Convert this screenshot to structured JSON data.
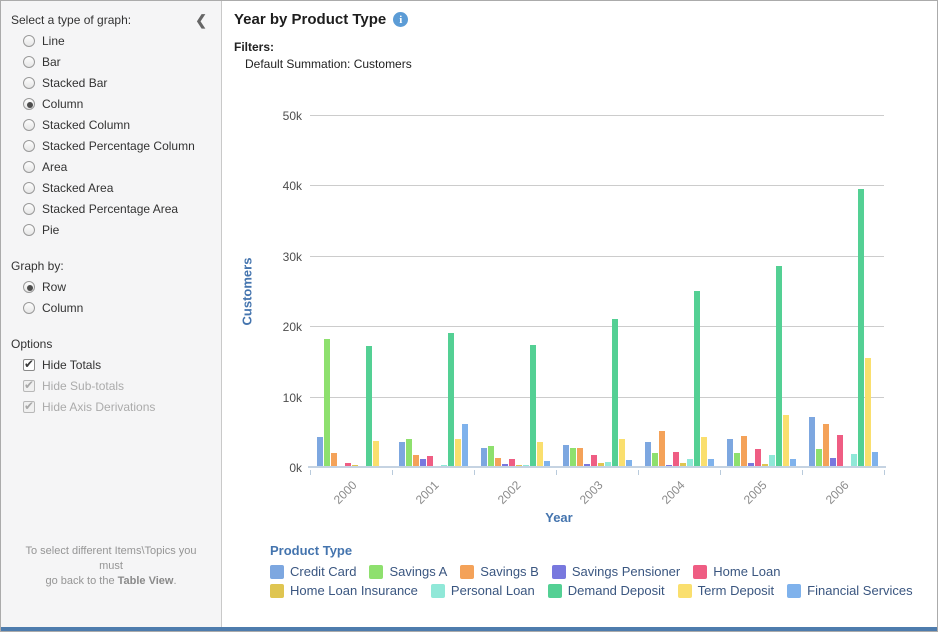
{
  "sidebar": {
    "graph_type_label": "Select a type of graph:",
    "graph_types": [
      {
        "label": "Line",
        "selected": false
      },
      {
        "label": "Bar",
        "selected": false
      },
      {
        "label": "Stacked Bar",
        "selected": false
      },
      {
        "label": "Column",
        "selected": true
      },
      {
        "label": "Stacked Column",
        "selected": false
      },
      {
        "label": "Stacked Percentage Column",
        "selected": false
      },
      {
        "label": "Area",
        "selected": false
      },
      {
        "label": "Stacked Area",
        "selected": false
      },
      {
        "label": "Stacked Percentage Area",
        "selected": false
      },
      {
        "label": "Pie",
        "selected": false
      }
    ],
    "graph_by_label": "Graph by:",
    "graph_by_options": [
      {
        "label": "Row",
        "selected": true
      },
      {
        "label": "Column",
        "selected": false
      }
    ],
    "options_label": "Options",
    "options": [
      {
        "label": "Hide Totals",
        "checked": true,
        "disabled": false
      },
      {
        "label": "Hide Sub-totals",
        "checked": true,
        "disabled": true
      },
      {
        "label": "Hide Axis Derivations",
        "checked": true,
        "disabled": true
      }
    ],
    "footer_note_line1": "To select different Items\\Topics you must",
    "footer_note_pre": "go back to the ",
    "footer_note_bold": "Table View",
    "footer_note_end": "."
  },
  "header": {
    "title": "Year by Product Type",
    "filters_label": "Filters:",
    "filter_value": "Default Summation: Customers"
  },
  "icons": {
    "collapse_glyph": "❮",
    "info_glyph": "i"
  },
  "chart_data": {
    "type": "bar",
    "title": "Year by Product Type",
    "xlabel": "Year",
    "ylabel": "Customers",
    "ylim": [
      0,
      50000
    ],
    "ytick_labels": [
      "0k",
      "10k",
      "20k",
      "30k",
      "40k",
      "50k"
    ],
    "grid": true,
    "legend_title": "Product Type",
    "legend_position": "bottom",
    "categories": [
      "2000",
      "2001",
      "2002",
      "2003",
      "2004",
      "2005",
      "2006"
    ],
    "series": [
      {
        "name": "Credit Card",
        "color": "#7da7e0",
        "values": [
          4100,
          3400,
          2500,
          3000,
          3400,
          3800,
          7000
        ]
      },
      {
        "name": "Savings A",
        "color": "#8ee06e",
        "values": [
          18000,
          3800,
          2800,
          2600,
          1900,
          1900,
          2400
        ]
      },
      {
        "name": "Savings B",
        "color": "#f4a259",
        "values": [
          1900,
          1600,
          1100,
          2600,
          5000,
          4200,
          5900
        ]
      },
      {
        "name": "Savings Pensioner",
        "color": "#7878de",
        "values": [
          0,
          1000,
          250,
          300,
          150,
          400,
          1100
        ]
      },
      {
        "name": "Home Loan",
        "color": "#ef5d83",
        "values": [
          400,
          1400,
          1000,
          1600,
          2000,
          2400,
          4400
        ]
      },
      {
        "name": "Home Loan Insurance",
        "color": "#dfc551",
        "values": [
          200,
          0,
          200,
          400,
          400,
          300,
          0
        ]
      },
      {
        "name": "Personal Loan",
        "color": "#90e8d8",
        "values": [
          0,
          200,
          200,
          600,
          1000,
          1600,
          1750
        ]
      },
      {
        "name": "Demand Deposit",
        "color": "#54d094",
        "values": [
          17000,
          18900,
          17200,
          20900,
          24800,
          28400,
          39300
        ]
      },
      {
        "name": "Term Deposit",
        "color": "#fadf6e",
        "values": [
          3600,
          3900,
          3400,
          3800,
          4100,
          7300,
          15400
        ]
      },
      {
        "name": "Financial Services",
        "color": "#7fb2ec",
        "values": [
          0,
          6000,
          700,
          900,
          1000,
          1000,
          2000
        ]
      }
    ]
  }
}
